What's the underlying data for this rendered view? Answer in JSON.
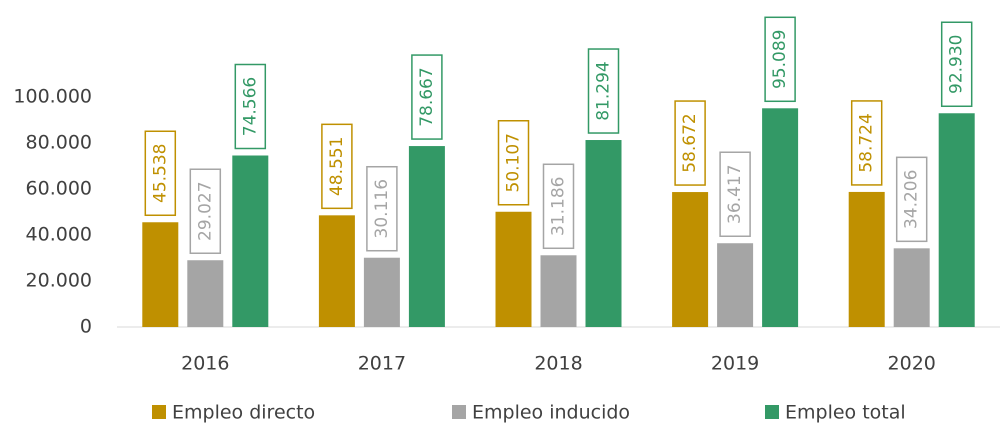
{
  "chart_data": {
    "type": "bar",
    "categories": [
      "2016",
      "2017",
      "2018",
      "2019",
      "2020"
    ],
    "series": [
      {
        "name": "Empleo directo",
        "color": "#bf9000",
        "values": [
          45538,
          48551,
          50107,
          58672,
          58724
        ],
        "value_labels": [
          "45.538",
          "48.551",
          "50.107",
          "58.672",
          "58.724"
        ]
      },
      {
        "name": "Empleo inducido",
        "color": "#a5a5a5",
        "values": [
          29027,
          30116,
          31186,
          36417,
          34206
        ],
        "value_labels": [
          "29.027",
          "30.116",
          "31.186",
          "36.417",
          "34.206"
        ]
      },
      {
        "name": "Empleo total",
        "color": "#339966",
        "values": [
          74566,
          78667,
          81294,
          95089,
          92930
        ],
        "value_labels": [
          "74.566",
          "78.667",
          "81.294",
          "95.089",
          "92.930"
        ]
      }
    ],
    "ylim": [
      0,
      100000
    ],
    "yticks": [
      0,
      {
        "value": 20000,
        "label": "20.000"
      },
      {
        "value": 40000,
        "label": "40.000"
      },
      {
        "value": 60000,
        "label": "60.000"
      },
      {
        "value": 80000,
        "label": "80.000"
      },
      {
        "value": 100000,
        "label": "100.000"
      }
    ],
    "grid": false,
    "legend": "bottom"
  }
}
